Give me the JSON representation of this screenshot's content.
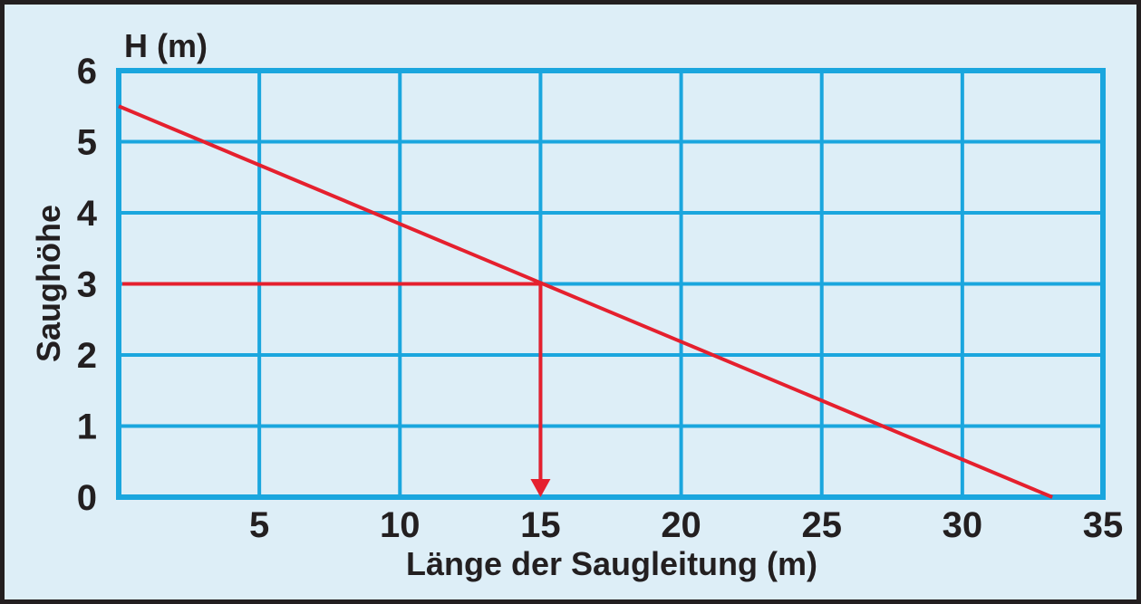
{
  "chart_data": {
    "type": "line",
    "title": "",
    "xlabel": "Länge der Saugleitung (m)",
    "ylabel": "Saughöhe",
    "yunit_label": "H (m)",
    "xlim": [
      0,
      35
    ],
    "ylim": [
      0,
      6
    ],
    "x_ticks": [
      "5",
      "10",
      "15",
      "20",
      "25",
      "30",
      "35"
    ],
    "y_ticks": [
      "0",
      "1",
      "2",
      "3",
      "4",
      "5",
      "6"
    ],
    "grid": true,
    "series": [
      {
        "x": [
          0,
          33.2
        ],
        "y": [
          5.5,
          0
        ],
        "color": "#e5202e"
      }
    ],
    "annotation": {
      "from": [
        0,
        3
      ],
      "corner": [
        15,
        3
      ],
      "to": [
        15,
        0
      ],
      "arrow": true,
      "color": "#e5202e"
    },
    "colors": {
      "background": "#ddeef7",
      "grid": "#1aa6de",
      "line": "#e5202e",
      "border": "#231f20",
      "text": "#231f20"
    }
  }
}
